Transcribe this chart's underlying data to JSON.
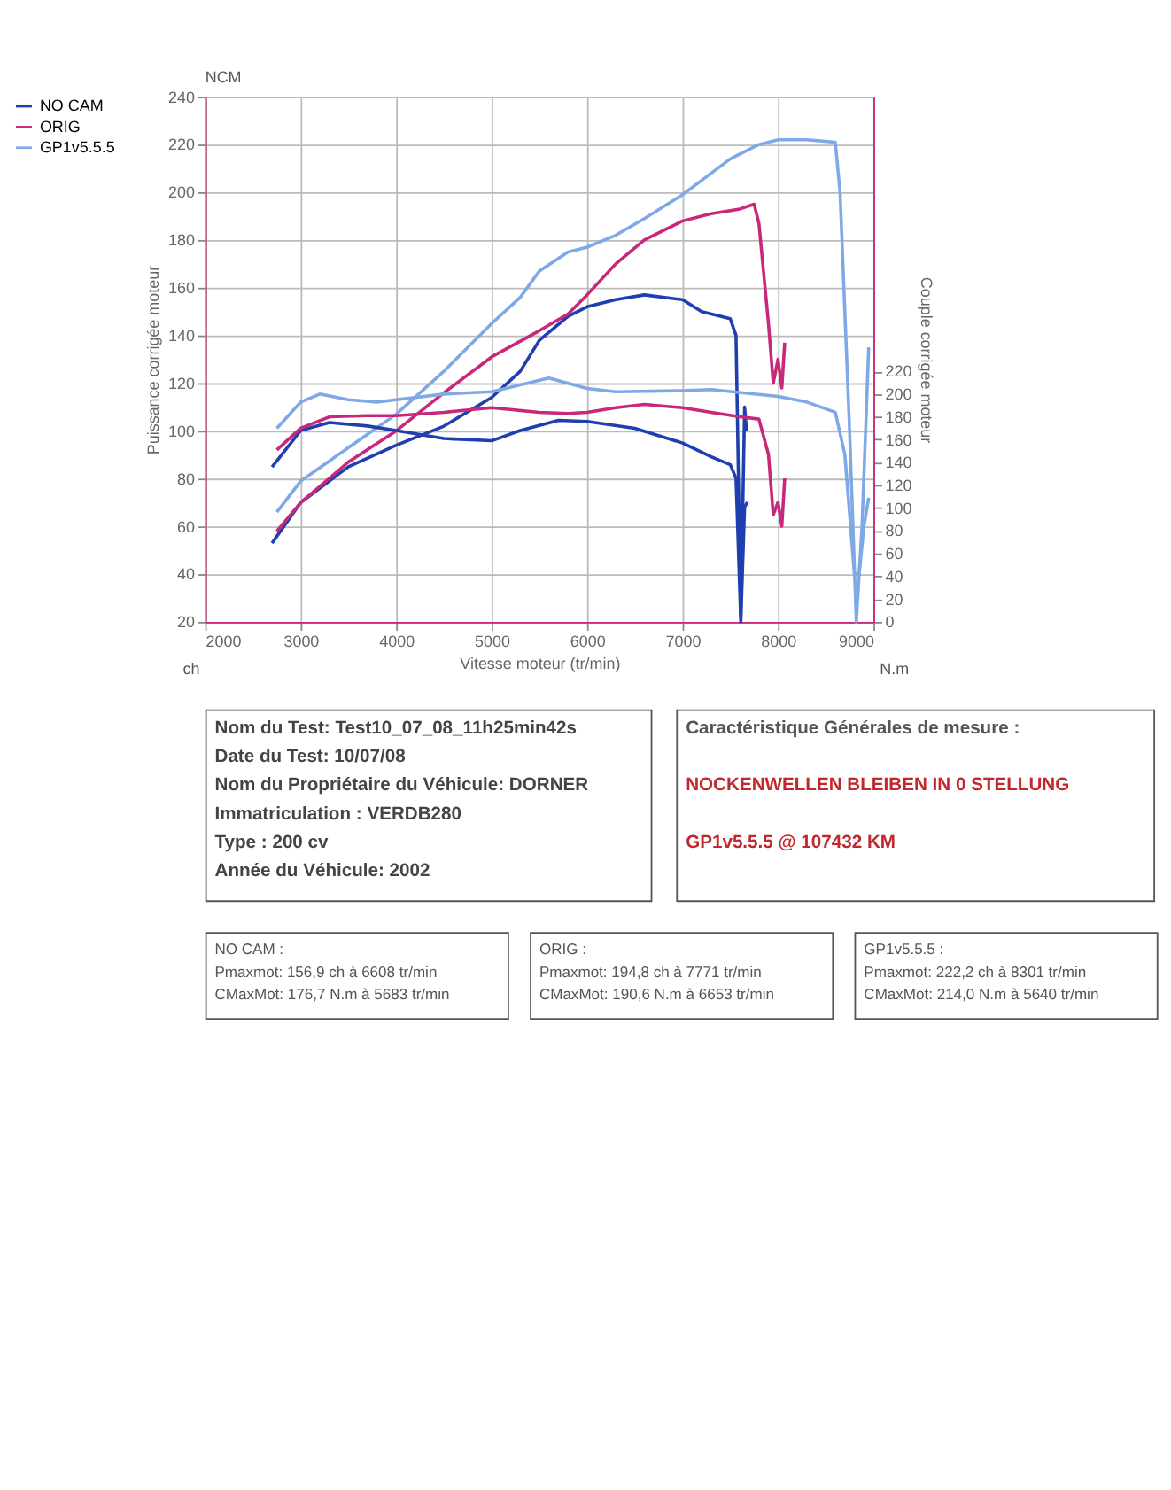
{
  "chart_data": {
    "type": "line",
    "xlabel": "Vitesse moteur (tr/min)",
    "ylabel": "Puissance corrigée moteur",
    "y2label": "Couple corrigée moteur",
    "xlim": [
      2000,
      9000
    ],
    "xticks": [
      2000,
      3000,
      4000,
      5000,
      6000,
      7000,
      8000,
      9000
    ],
    "ylim": [
      20,
      240
    ],
    "yticks": [
      20,
      40,
      60,
      80,
      100,
      120,
      140,
      160,
      180,
      200,
      220,
      240
    ],
    "y2lim": [
      0,
      461
    ],
    "y2ticks": [
      0,
      20,
      40,
      60,
      80,
      100,
      120,
      140,
      160,
      180,
      200,
      220
    ],
    "grid": true,
    "legend": "left",
    "line_style": "solid",
    "marker": "none",
    "series": [
      {
        "name": "NO CAM",
        "color": "#1f3fb0",
        "x": [
          2700,
          3000,
          3500,
          4000,
          4500,
          5000,
          5300,
          5500,
          5800,
          6000,
          6300,
          6600,
          7000,
          7200,
          7500,
          7560,
          7610,
          7650,
          7670
        ],
        "values": [
          53,
          70,
          85,
          94,
          102,
          114,
          125,
          138,
          148,
          152,
          155,
          157,
          155,
          150,
          147,
          140,
          22,
          110,
          100
        ]
      },
      {
        "name": "ORIG",
        "color": "#c8287a",
        "x": [
          2750,
          3000,
          3500,
          4000,
          4500,
          5000,
          5500,
          5800,
          6000,
          6300,
          6600,
          7000,
          7300,
          7600,
          7750,
          7800,
          7900,
          7950,
          8000,
          8040,
          8070
        ],
        "values": [
          58,
          70,
          87,
          100,
          116,
          131,
          142,
          149,
          157,
          170,
          180,
          188,
          191,
          193,
          195,
          187,
          145,
          120,
          130,
          118,
          137
        ]
      },
      {
        "name": "GP1v5.5.5",
        "color": "#7fa8e6",
        "x": [
          2750,
          3000,
          3500,
          4000,
          4500,
          5000,
          5300,
          5500,
          5800,
          6000,
          6300,
          6600,
          7000,
          7200,
          7500,
          7800,
          8000,
          8300,
          8600,
          8650,
          8750,
          8820,
          8880,
          8950
        ],
        "values": [
          66,
          79,
          93,
          107,
          125,
          145,
          156,
          167,
          175,
          177,
          182,
          189,
          199,
          205,
          214,
          220,
          222,
          222,
          221,
          200,
          100,
          20,
          60,
          135
        ]
      },
      {
        "axis": "y2",
        "color": "#1f3fb0",
        "x": [
          2700,
          3000,
          3300,
          3700,
          4000,
          4500,
          5000,
          5300,
          5700,
          6000,
          6500,
          7000,
          7300,
          7500,
          7560,
          7610,
          7650,
          7680
        ],
        "values": [
          136,
          168,
          175,
          172,
          168,
          161,
          159,
          168,
          177,
          176,
          170,
          157,
          145,
          138,
          126,
          0,
          101,
          105
        ]
      },
      {
        "axis": "y2",
        "color": "#c8287a",
        "x": [
          2750,
          3000,
          3300,
          3700,
          4000,
          4500,
          5000,
          5500,
          5800,
          6000,
          6300,
          6600,
          7000,
          7300,
          7600,
          7800,
          7900,
          7950,
          8000,
          8040,
          8070
        ],
        "values": [
          151,
          170,
          180,
          181,
          181,
          184,
          188,
          184,
          183,
          184,
          188,
          191,
          188,
          184,
          180,
          178,
          147,
          94,
          105,
          84,
          126
        ]
      },
      {
        "axis": "y2",
        "color": "#7fa8e6",
        "x": [
          2750,
          3000,
          3200,
          3500,
          3800,
          4000,
          4500,
          5000,
          5300,
          5600,
          6000,
          6300,
          7000,
          7300,
          8000,
          8300,
          8600,
          8700,
          8800,
          8850,
          8900,
          8950
        ],
        "values": [
          170,
          193,
          200,
          195,
          193,
          195,
          200,
          202,
          208,
          214,
          205,
          202,
          203,
          204,
          198,
          193,
          184,
          147,
          42,
          42,
          84,
          109
        ]
      }
    ],
    "annotations": [
      "NCM",
      "ch",
      "N.m",
      "Nom du Test: Test10_07_08_11h25min42s",
      "Date du Test: 10/07/08",
      "Nom du Propriétaire du Véhicule: DORNER",
      "Immatriculation  : VERDB280",
      "Type  : 200 cv",
      "Année du Véhicule: 2002",
      "Caractéristique Générales de mesure :",
      "NOCKENWELLEN BLEIBEN IN 0 STELLUNG",
      "GP1v5.5.5 @ 107432 KM",
      "NO CAM :",
      "Pmaxmot: 156,9 ch à 6608 tr/min",
      "CMaxMot: 176,7 N.m à 5683 tr/min",
      "ORIG :",
      "Pmaxmot: 194,8 ch à 7771 tr/min",
      "CMaxMot: 190,6 N.m à 6653 tr/min",
      "GP1v5.5.5 :",
      "Pmaxmot: 222,2 ch à 8301 tr/min",
      "CMaxMot: 214,0 N.m à 5640 tr/min"
    ]
  }
}
